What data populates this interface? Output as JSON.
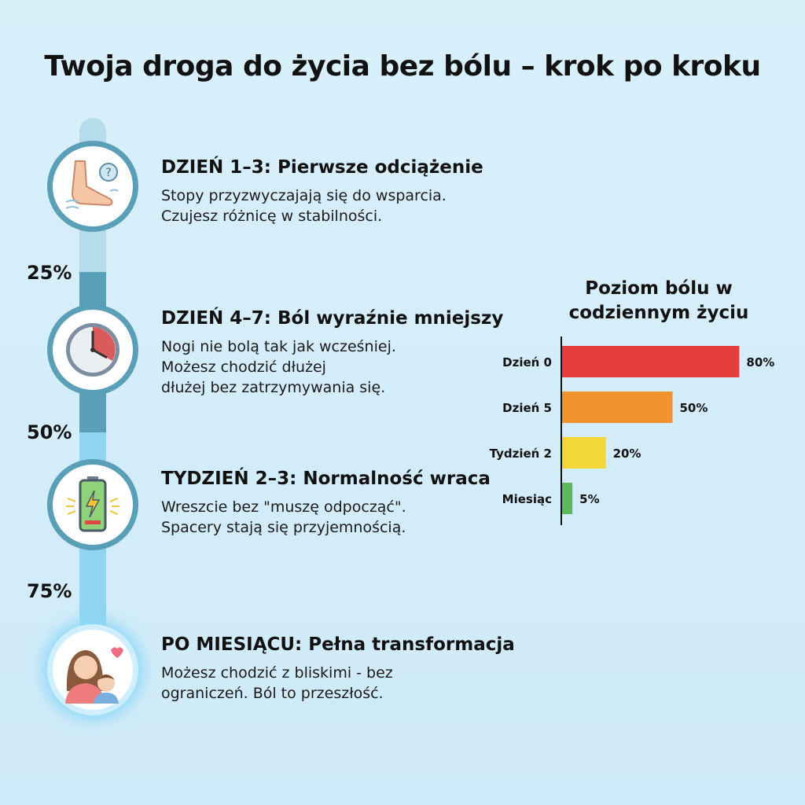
{
  "title": "Twoja droga do życia bez bólu – krok po kroku",
  "timeline": {
    "markers": [
      "25%",
      "50%",
      "75%"
    ],
    "steps": [
      {
        "icon": "foot-question-icon",
        "heading": "DZIEŃ 1–3: Pierwsze odciążenie",
        "lines": [
          "Stopy przyzwyczajają się do wsparcia.",
          "Czujesz różnicę w stabilności."
        ]
      },
      {
        "icon": "clock-icon",
        "heading": "DZIEŃ 4–7: Ból wyraźnie mniejszy",
        "lines": [
          "Nogi nie bolą tak jak wcześniej.",
          "Możesz chodzić dłużej",
          "dłużej bez zatrzymywania się."
        ]
      },
      {
        "icon": "battery-charging-icon",
        "heading": "TYDZIEŃ 2–3: Normalność wraca",
        "lines": [
          "Wreszcie bez \"muszę odpocząć\".",
          "Spacery stają się przyjemnością."
        ]
      },
      {
        "icon": "mother-child-icon",
        "heading": "PO MIESIĄCU: Pełna transformacja",
        "lines": [
          "Możesz chodzić z bliskimi - bez",
          "ograniczeń. Ból to przeszłość."
        ]
      }
    ]
  },
  "chart_data": {
    "type": "bar",
    "orientation": "horizontal",
    "title": "Poziom bólu w codziennym życiu",
    "title_lines": [
      "Poziom bólu w",
      "codziennym życiu"
    ],
    "categories": [
      "Dzień 0",
      "Dzień 5",
      "Tydzień 2",
      "Miesiąc"
    ],
    "values": [
      80,
      50,
      20,
      5
    ],
    "value_labels": [
      "80%",
      "50%",
      "20%",
      "5%"
    ],
    "colors": [
      "#e53c3c",
      "#f0922e",
      "#f2d63a",
      "#5cb85c"
    ],
    "xlabel": "",
    "ylabel": "",
    "xlim": [
      0,
      100
    ],
    "grid": false
  }
}
